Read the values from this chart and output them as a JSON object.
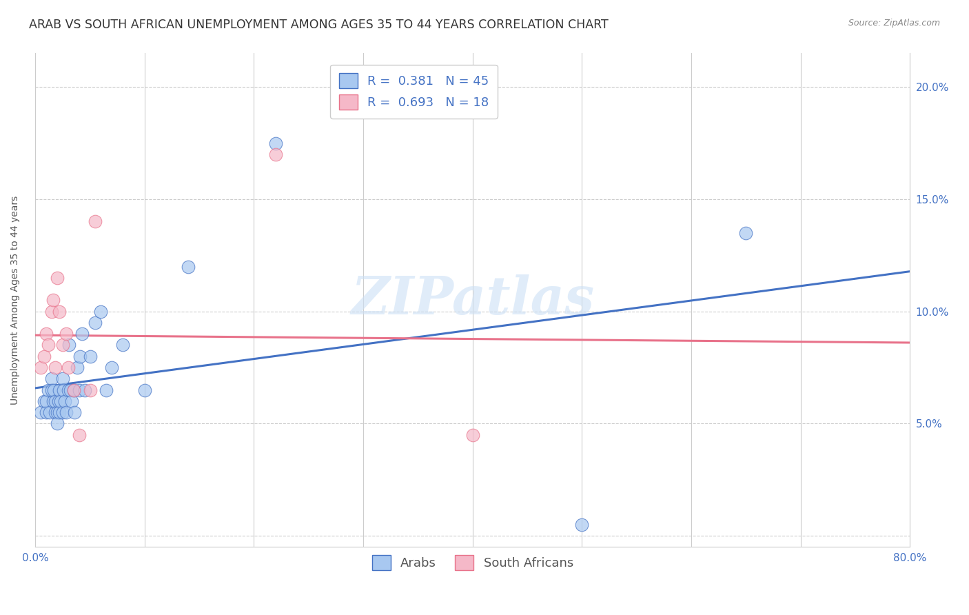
{
  "title": "ARAB VS SOUTH AFRICAN UNEMPLOYMENT AMONG AGES 35 TO 44 YEARS CORRELATION CHART",
  "source": "Source: ZipAtlas.com",
  "ylabel": "Unemployment Among Ages 35 to 44 years",
  "xlim": [
    0.0,
    0.8
  ],
  "ylim": [
    -0.005,
    0.215
  ],
  "xticks": [
    0.0,
    0.1,
    0.2,
    0.3,
    0.4,
    0.5,
    0.6,
    0.7,
    0.8
  ],
  "xticklabels": [
    "0.0%",
    "",
    "",
    "",
    "",
    "",
    "",
    "",
    "80.0%"
  ],
  "yticks": [
    0.0,
    0.05,
    0.1,
    0.15,
    0.2
  ],
  "yticklabels": [
    "",
    "5.0%",
    "10.0%",
    "15.0%",
    "20.0%"
  ],
  "arab_color": "#a8c8f0",
  "sa_color": "#f5b8c8",
  "arab_line_color": "#4472c4",
  "sa_line_color": "#e8728a",
  "R_arab": 0.381,
  "N_arab": 45,
  "R_sa": 0.693,
  "N_sa": 18,
  "watermark": "ZIPatlas",
  "legend_arab": "Arabs",
  "legend_sa": "South Africans",
  "arab_x": [
    0.005,
    0.008,
    0.01,
    0.01,
    0.012,
    0.013,
    0.015,
    0.015,
    0.016,
    0.017,
    0.018,
    0.018,
    0.02,
    0.02,
    0.021,
    0.022,
    0.022,
    0.023,
    0.025,
    0.025,
    0.026,
    0.027,
    0.028,
    0.03,
    0.031,
    0.032,
    0.033,
    0.035,
    0.036,
    0.038,
    0.04,
    0.041,
    0.043,
    0.045,
    0.05,
    0.055,
    0.06,
    0.065,
    0.07,
    0.08,
    0.1,
    0.14,
    0.22,
    0.5,
    0.65
  ],
  "arab_y": [
    0.055,
    0.06,
    0.055,
    0.06,
    0.065,
    0.055,
    0.07,
    0.065,
    0.06,
    0.065,
    0.055,
    0.06,
    0.055,
    0.05,
    0.06,
    0.055,
    0.065,
    0.06,
    0.07,
    0.055,
    0.065,
    0.06,
    0.055,
    0.065,
    0.085,
    0.065,
    0.06,
    0.065,
    0.055,
    0.075,
    0.065,
    0.08,
    0.09,
    0.065,
    0.08,
    0.095,
    0.1,
    0.065,
    0.075,
    0.085,
    0.065,
    0.12,
    0.175,
    0.005,
    0.135
  ],
  "sa_x": [
    0.005,
    0.008,
    0.01,
    0.012,
    0.015,
    0.016,
    0.018,
    0.02,
    0.022,
    0.025,
    0.028,
    0.03,
    0.035,
    0.04,
    0.05,
    0.055,
    0.22,
    0.4
  ],
  "sa_y": [
    0.075,
    0.08,
    0.09,
    0.085,
    0.1,
    0.105,
    0.075,
    0.115,
    0.1,
    0.085,
    0.09,
    0.075,
    0.065,
    0.045,
    0.065,
    0.14,
    0.17,
    0.045
  ],
  "grid_color": "#cccccc",
  "background_color": "#ffffff",
  "title_fontsize": 12.5,
  "axis_label_fontsize": 10,
  "tick_fontsize": 11,
  "legend_fontsize": 13,
  "watermark_color": "#cce0f5",
  "watermark_fontsize": 55
}
